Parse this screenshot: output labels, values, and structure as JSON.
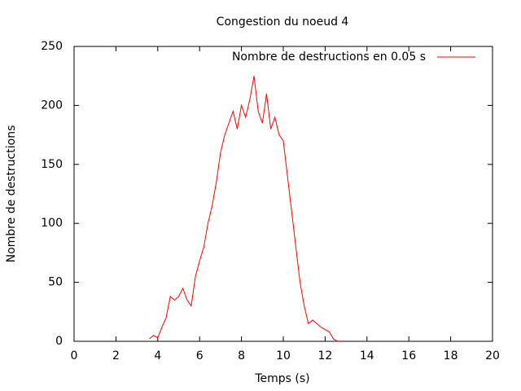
{
  "chart_data": {
    "type": "line",
    "title": "Congestion du noeud 4",
    "x_label": "Temps (s)",
    "y_label": "Nombre de destructions",
    "x": [
      3.6,
      3.8,
      4.0,
      4.2,
      4.4,
      4.6,
      4.8,
      5.0,
      5.2,
      5.4,
      5.6,
      5.8,
      6.0,
      6.2,
      6.4,
      6.6,
      6.8,
      7.0,
      7.2,
      7.4,
      7.6,
      7.8,
      8.0,
      8.2,
      8.4,
      8.6,
      8.8,
      9.0,
      9.2,
      9.4,
      9.6,
      9.8,
      10.0,
      10.2,
      10.4,
      10.6,
      10.8,
      11.0,
      11.2,
      11.4,
      11.6,
      11.8,
      12.0,
      12.2,
      12.4,
      12.6
    ],
    "series": [
      {
        "name": "Nombre de destructions en 0.05 s",
        "color": "#ff0000",
        "values": [
          2,
          5,
          3,
          12,
          20,
          38,
          35,
          38,
          45,
          35,
          30,
          55,
          68,
          80,
          100,
          115,
          135,
          160,
          175,
          185,
          195,
          180,
          200,
          190,
          205,
          225,
          195,
          185,
          210,
          180,
          190,
          175,
          170,
          140,
          110,
          80,
          50,
          30,
          15,
          18,
          15,
          12,
          10,
          8,
          2,
          0
        ]
      }
    ],
    "xlim": [
      0,
      20
    ],
    "xticks": [
      0,
      2,
      4,
      6,
      8,
      10,
      12,
      14,
      16,
      18,
      20
    ],
    "ylim": [
      0,
      250
    ],
    "yticks": [
      0,
      50,
      100,
      150,
      200,
      250
    ],
    "legend": "top-right"
  }
}
